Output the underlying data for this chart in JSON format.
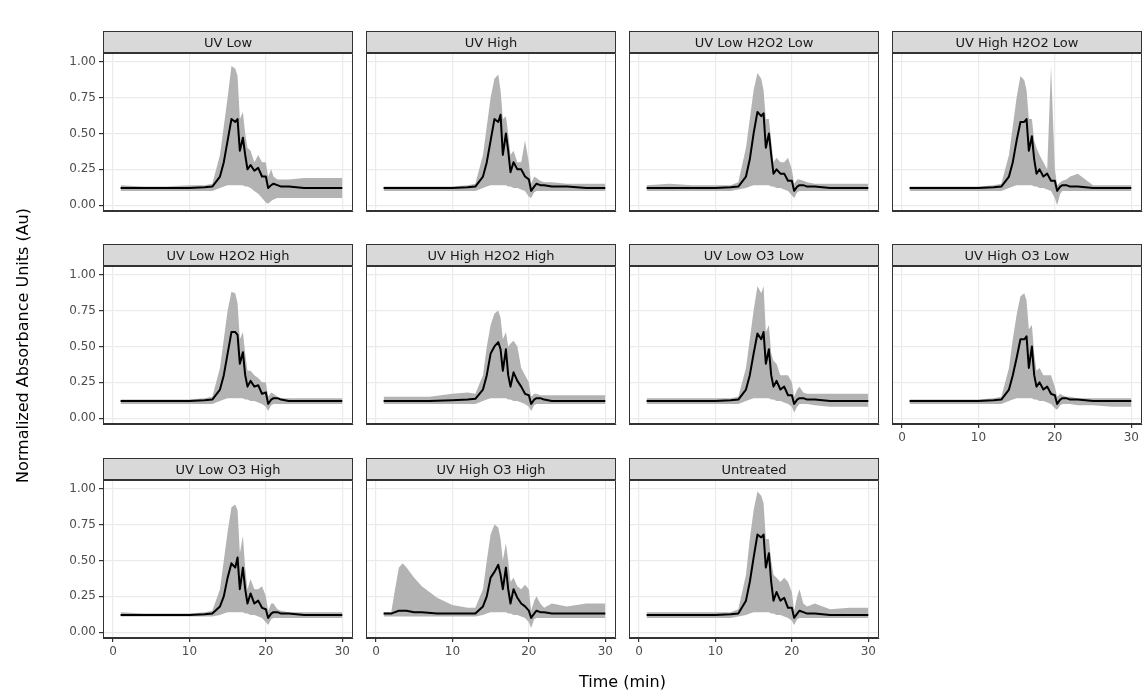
{
  "chart_data": [
    {
      "type": "line",
      "title": "UV Low",
      "marker": "none",
      "grid": true,
      "tick_labels": "y",
      "xlim": [
        -1.3,
        31.4
      ],
      "xticks": [
        0,
        10,
        20,
        30
      ],
      "ylim": [
        -0.04,
        1.06
      ],
      "yticks": [
        {
          "value": 0,
          "label": "0.00"
        },
        {
          "value": 0.25,
          "label": "0.25"
        },
        {
          "value": 0.5,
          "label": "0.50"
        },
        {
          "value": 0.75,
          "label": "0.75"
        },
        {
          "value": 1,
          "label": "1.00"
        }
      ],
      "x": [
        1,
        4,
        7,
        10,
        12,
        13,
        14,
        14.5,
        15,
        15.5,
        16,
        16.3,
        16.6,
        17,
        17.3,
        17.6,
        18,
        18.5,
        19,
        19.5,
        20,
        20.3,
        20.7,
        21,
        21.5,
        22,
        23,
        25,
        27.5,
        30
      ],
      "series": [
        {
          "color": "#000000",
          "values": [
            0.12,
            0.12,
            0.12,
            0.12,
            0.125,
            0.13,
            0.2,
            0.3,
            0.45,
            0.6,
            0.58,
            0.6,
            0.38,
            0.47,
            0.35,
            0.25,
            0.28,
            0.24,
            0.26,
            0.2,
            0.2,
            0.12,
            0.14,
            0.15,
            0.14,
            0.13,
            0.13,
            0.12,
            0.12,
            0.12
          ],
          "upper": [
            0.14,
            0.13,
            0.13,
            0.14,
            0.14,
            0.15,
            0.35,
            0.55,
            0.75,
            0.97,
            0.95,
            0.9,
            0.6,
            0.65,
            0.5,
            0.4,
            0.38,
            0.3,
            0.35,
            0.3,
            0.3,
            0.2,
            0.25,
            0.2,
            0.18,
            0.18,
            0.18,
            0.19,
            0.19,
            0.19
          ],
          "lower": [
            0.1,
            0.1,
            0.1,
            0.1,
            0.1,
            0.1,
            0.12,
            0.13,
            0.14,
            0.14,
            0.14,
            0.14,
            0.14,
            0.14,
            0.13,
            0.13,
            0.12,
            0.1,
            0.08,
            0.05,
            0.02,
            0.01,
            0.03,
            0.04,
            0.05,
            0.05,
            0.05,
            0.05,
            0.05,
            0.05
          ]
        }
      ]
    },
    {
      "type": "line",
      "title": "UV High",
      "marker": "none",
      "grid": true,
      "tick_labels": false,
      "xlim": [
        -1.3,
        31.4
      ],
      "xticks": [
        0,
        10,
        20,
        30
      ],
      "ylim": [
        -0.04,
        1.06
      ],
      "yticks": [
        0,
        0.25,
        0.5,
        0.75,
        1
      ],
      "x": [
        1,
        4,
        7,
        10,
        12,
        13,
        14,
        14.5,
        15,
        15.5,
        16,
        16.3,
        16.6,
        17,
        17.3,
        17.6,
        18,
        18.5,
        19,
        19.5,
        20,
        20.3,
        20.7,
        21,
        21.5,
        22,
        23,
        25,
        27.5,
        30
      ],
      "series": [
        {
          "color": "#000000",
          "values": [
            0.12,
            0.12,
            0.12,
            0.12,
            0.125,
            0.13,
            0.2,
            0.3,
            0.45,
            0.6,
            0.58,
            0.63,
            0.35,
            0.5,
            0.38,
            0.23,
            0.3,
            0.25,
            0.25,
            0.2,
            0.18,
            0.1,
            0.13,
            0.15,
            0.14,
            0.14,
            0.13,
            0.13,
            0.12,
            0.12
          ],
          "upper": [
            0.13,
            0.13,
            0.13,
            0.13,
            0.14,
            0.15,
            0.35,
            0.55,
            0.75,
            0.88,
            0.91,
            0.8,
            0.6,
            0.62,
            0.5,
            0.35,
            0.38,
            0.3,
            0.3,
            0.45,
            0.3,
            0.15,
            0.2,
            0.19,
            0.17,
            0.16,
            0.16,
            0.15,
            0.15,
            0.15
          ],
          "lower": [
            0.1,
            0.1,
            0.1,
            0.1,
            0.1,
            0.1,
            0.12,
            0.13,
            0.14,
            0.14,
            0.14,
            0.14,
            0.14,
            0.14,
            0.13,
            0.13,
            0.12,
            0.12,
            0.11,
            0.1,
            0.06,
            0.05,
            0.09,
            0.1,
            0.1,
            0.1,
            0.1,
            0.1,
            0.1,
            0.1
          ]
        }
      ]
    },
    {
      "type": "line",
      "title": "UV Low H2O2 Low",
      "marker": "none",
      "grid": true,
      "tick_labels": false,
      "xlim": [
        -1.3,
        31.4
      ],
      "xticks": [
        0,
        10,
        20,
        30
      ],
      "ylim": [
        -0.04,
        1.06
      ],
      "yticks": [
        0,
        0.25,
        0.5,
        0.75,
        1
      ],
      "x": [
        1,
        4,
        7,
        10,
        12,
        13,
        14,
        14.5,
        15,
        15.5,
        16,
        16.3,
        16.6,
        17,
        17.3,
        17.6,
        18,
        18.5,
        19,
        19.5,
        20,
        20.3,
        20.7,
        21,
        21.5,
        22,
        23,
        25,
        27.5,
        30
      ],
      "series": [
        {
          "color": "#000000",
          "values": [
            0.12,
            0.12,
            0.12,
            0.12,
            0.125,
            0.13,
            0.2,
            0.32,
            0.5,
            0.65,
            0.62,
            0.64,
            0.4,
            0.5,
            0.35,
            0.22,
            0.25,
            0.22,
            0.22,
            0.17,
            0.17,
            0.1,
            0.13,
            0.14,
            0.14,
            0.13,
            0.13,
            0.12,
            0.12,
            0.12
          ],
          "upper": [
            0.14,
            0.15,
            0.14,
            0.14,
            0.14,
            0.16,
            0.4,
            0.6,
            0.8,
            0.92,
            0.88,
            0.8,
            0.6,
            0.6,
            0.45,
            0.3,
            0.33,
            0.3,
            0.3,
            0.33,
            0.25,
            0.15,
            0.18,
            0.18,
            0.17,
            0.16,
            0.15,
            0.15,
            0.15,
            0.15
          ],
          "lower": [
            0.1,
            0.1,
            0.1,
            0.1,
            0.1,
            0.11,
            0.12,
            0.13,
            0.14,
            0.14,
            0.14,
            0.14,
            0.14,
            0.14,
            0.13,
            0.13,
            0.12,
            0.12,
            0.11,
            0.1,
            0.07,
            0.05,
            0.09,
            0.1,
            0.1,
            0.1,
            0.1,
            0.1,
            0.1,
            0.1
          ]
        }
      ]
    },
    {
      "type": "line",
      "title": "UV High H2O2 Low",
      "marker": "none",
      "grid": true,
      "tick_labels": false,
      "xlim": [
        -1.3,
        31.4
      ],
      "xticks": [
        0,
        10,
        20,
        30
      ],
      "ylim": [
        -0.04,
        1.06
      ],
      "yticks": [
        0,
        0.25,
        0.5,
        0.75,
        1
      ],
      "x": [
        1,
        4,
        7,
        10,
        12,
        13,
        14,
        14.5,
        15,
        15.5,
        16,
        16.3,
        16.6,
        17,
        17.3,
        17.6,
        18,
        18.5,
        19,
        19.5,
        20,
        20.3,
        20.7,
        21,
        21.5,
        22,
        23,
        25,
        27.5,
        30
      ],
      "series": [
        {
          "color": "#000000",
          "values": [
            0.12,
            0.12,
            0.12,
            0.12,
            0.125,
            0.13,
            0.2,
            0.3,
            0.45,
            0.58,
            0.58,
            0.6,
            0.38,
            0.48,
            0.32,
            0.22,
            0.25,
            0.2,
            0.22,
            0.17,
            0.17,
            0.1,
            0.13,
            0.14,
            0.14,
            0.13,
            0.13,
            0.12,
            0.12,
            0.12
          ],
          "upper": [
            0.13,
            0.13,
            0.13,
            0.13,
            0.14,
            0.15,
            0.35,
            0.55,
            0.75,
            0.9,
            0.87,
            0.8,
            0.6,
            0.6,
            0.45,
            0.4,
            0.35,
            0.3,
            0.25,
            0.97,
            0.25,
            0.14,
            0.16,
            0.17,
            0.18,
            0.2,
            0.22,
            0.14,
            0.14,
            0.14
          ],
          "lower": [
            0.1,
            0.1,
            0.1,
            0.1,
            0.1,
            0.1,
            0.12,
            0.13,
            0.14,
            0.14,
            0.14,
            0.14,
            0.14,
            0.14,
            0.13,
            0.13,
            0.12,
            0.12,
            0.11,
            0.1,
            0.05,
            0,
            0.08,
            0.1,
            0.1,
            0.1,
            0.1,
            0.1,
            0.1,
            0.1
          ]
        }
      ]
    },
    {
      "type": "line",
      "title": "UV Low H2O2 High",
      "ylabel": "Normalized Absorbance Units (Au)",
      "marker": "none",
      "grid": true,
      "tick_labels": "y",
      "xlim": [
        -1.3,
        31.4
      ],
      "xticks": [
        0,
        10,
        20,
        30
      ],
      "ylim": [
        -0.04,
        1.06
      ],
      "yticks": [
        {
          "value": 0,
          "label": "0.00"
        },
        {
          "value": 0.25,
          "label": "0.25"
        },
        {
          "value": 0.5,
          "label": "0.50"
        },
        {
          "value": 0.75,
          "label": "0.75"
        },
        {
          "value": 1,
          "label": "1.00"
        }
      ],
      "x": [
        1,
        4,
        7,
        10,
        12,
        13,
        14,
        14.5,
        15,
        15.5,
        16,
        16.3,
        16.6,
        17,
        17.3,
        17.6,
        18,
        18.5,
        19,
        19.5,
        20,
        20.3,
        20.7,
        21,
        21.5,
        22,
        23,
        25,
        27.5,
        30
      ],
      "series": [
        {
          "color": "#000000",
          "values": [
            0.12,
            0.12,
            0.12,
            0.12,
            0.125,
            0.13,
            0.2,
            0.3,
            0.45,
            0.6,
            0.6,
            0.58,
            0.38,
            0.46,
            0.3,
            0.22,
            0.26,
            0.22,
            0.23,
            0.17,
            0.18,
            0.1,
            0.13,
            0.14,
            0.14,
            0.13,
            0.12,
            0.12,
            0.12,
            0.12
          ],
          "upper": [
            0.13,
            0.13,
            0.13,
            0.13,
            0.14,
            0.15,
            0.35,
            0.55,
            0.75,
            0.88,
            0.87,
            0.8,
            0.55,
            0.6,
            0.45,
            0.33,
            0.33,
            0.3,
            0.28,
            0.25,
            0.25,
            0.15,
            0.18,
            0.17,
            0.15,
            0.14,
            0.14,
            0.14,
            0.14,
            0.14
          ],
          "lower": [
            0.1,
            0.1,
            0.1,
            0.1,
            0.1,
            0.1,
            0.12,
            0.13,
            0.14,
            0.14,
            0.14,
            0.14,
            0.14,
            0.14,
            0.13,
            0.13,
            0.12,
            0.12,
            0.11,
            0.1,
            0.08,
            0.05,
            0.09,
            0.1,
            0.1,
            0.1,
            0.1,
            0.1,
            0.1,
            0.1
          ]
        }
      ]
    },
    {
      "type": "line",
      "title": "UV High H2O2 High",
      "marker": "none",
      "grid": true,
      "tick_labels": false,
      "xlim": [
        -1.3,
        31.4
      ],
      "xticks": [
        0,
        10,
        20,
        30
      ],
      "ylim": [
        -0.04,
        1.06
      ],
      "yticks": [
        0,
        0.25,
        0.5,
        0.75,
        1
      ],
      "x": [
        1,
        4,
        7,
        10,
        12,
        13,
        14,
        14.5,
        15,
        15.5,
        16,
        16.3,
        16.6,
        17,
        17.3,
        17.6,
        18,
        18.5,
        19,
        19.5,
        20,
        20.3,
        20.7,
        21,
        21.5,
        22,
        23,
        25,
        27.5,
        30
      ],
      "series": [
        {
          "color": "#000000",
          "values": [
            0.12,
            0.12,
            0.12,
            0.125,
            0.13,
            0.135,
            0.2,
            0.3,
            0.45,
            0.5,
            0.53,
            0.48,
            0.33,
            0.48,
            0.3,
            0.22,
            0.32,
            0.26,
            0.22,
            0.17,
            0.16,
            0.1,
            0.13,
            0.14,
            0.14,
            0.13,
            0.12,
            0.12,
            0.12,
            0.12
          ],
          "upper": [
            0.15,
            0.15,
            0.15,
            0.17,
            0.18,
            0.17,
            0.3,
            0.5,
            0.65,
            0.73,
            0.75,
            0.7,
            0.55,
            0.6,
            0.5,
            0.52,
            0.54,
            0.5,
            0.35,
            0.3,
            0.25,
            0.15,
            0.17,
            0.17,
            0.16,
            0.16,
            0.16,
            0.16,
            0.16,
            0.16
          ],
          "lower": [
            0.1,
            0.1,
            0.1,
            0.1,
            0.1,
            0.1,
            0.12,
            0.13,
            0.14,
            0.14,
            0.14,
            0.14,
            0.14,
            0.14,
            0.13,
            0.13,
            0.12,
            0.12,
            0.11,
            0.1,
            0.08,
            0.05,
            0.09,
            0.1,
            0.1,
            0.1,
            0.1,
            0.1,
            0.1,
            0.1
          ]
        }
      ]
    },
    {
      "type": "line",
      "title": "UV Low O3 Low",
      "marker": "none",
      "grid": true,
      "tick_labels": false,
      "xlim": [
        -1.3,
        31.4
      ],
      "xticks": [
        0,
        10,
        20,
        30
      ],
      "ylim": [
        -0.04,
        1.06
      ],
      "yticks": [
        0,
        0.25,
        0.5,
        0.75,
        1
      ],
      "x": [
        1,
        4,
        7,
        10,
        12,
        13,
        14,
        14.5,
        15,
        15.5,
        16,
        16.3,
        16.6,
        17,
        17.3,
        17.6,
        18,
        18.5,
        19,
        19.5,
        20,
        20.3,
        20.7,
        21,
        21.5,
        22,
        23,
        25,
        27.5,
        30
      ],
      "series": [
        {
          "color": "#000000",
          "values": [
            0.12,
            0.12,
            0.12,
            0.12,
            0.125,
            0.13,
            0.2,
            0.3,
            0.45,
            0.59,
            0.55,
            0.6,
            0.38,
            0.48,
            0.3,
            0.22,
            0.26,
            0.2,
            0.22,
            0.16,
            0.16,
            0.1,
            0.13,
            0.14,
            0.14,
            0.13,
            0.13,
            0.12,
            0.12,
            0.12
          ],
          "upper": [
            0.14,
            0.14,
            0.14,
            0.14,
            0.14,
            0.15,
            0.35,
            0.55,
            0.75,
            0.92,
            0.87,
            0.92,
            0.6,
            0.65,
            0.45,
            0.4,
            0.38,
            0.3,
            0.3,
            0.3,
            0.25,
            0.15,
            0.2,
            0.22,
            0.18,
            0.17,
            0.17,
            0.17,
            0.17,
            0.17
          ],
          "lower": [
            0.1,
            0.1,
            0.1,
            0.1,
            0.1,
            0.1,
            0.12,
            0.13,
            0.14,
            0.14,
            0.14,
            0.14,
            0.14,
            0.14,
            0.13,
            0.13,
            0.12,
            0.12,
            0.11,
            0.1,
            0.08,
            0.04,
            0.08,
            0.1,
            0.1,
            0.1,
            0.09,
            0.08,
            0.08,
            0.08
          ]
        }
      ]
    },
    {
      "type": "line",
      "title": "UV High O3 Low",
      "marker": "none",
      "grid": true,
      "tick_labels": "x",
      "xlim": [
        -1.3,
        31.4
      ],
      "xticks": [
        0,
        10,
        20,
        30
      ],
      "ylim": [
        -0.04,
        1.06
      ],
      "yticks": [
        0,
        0.25,
        0.5,
        0.75,
        1
      ],
      "x": [
        1,
        4,
        7,
        10,
        12,
        13,
        14,
        14.5,
        15,
        15.5,
        16,
        16.3,
        16.6,
        17,
        17.3,
        17.6,
        18,
        18.5,
        19,
        19.5,
        20,
        20.3,
        20.7,
        21,
        21.5,
        22,
        23,
        25,
        27.5,
        30
      ],
      "series": [
        {
          "color": "#000000",
          "values": [
            0.12,
            0.12,
            0.12,
            0.12,
            0.125,
            0.13,
            0.2,
            0.3,
            0.42,
            0.55,
            0.55,
            0.57,
            0.35,
            0.5,
            0.3,
            0.22,
            0.25,
            0.2,
            0.22,
            0.17,
            0.16,
            0.1,
            0.13,
            0.14,
            0.14,
            0.13,
            0.13,
            0.12,
            0.12,
            0.12
          ],
          "upper": [
            0.13,
            0.13,
            0.13,
            0.13,
            0.14,
            0.15,
            0.35,
            0.55,
            0.72,
            0.85,
            0.87,
            0.82,
            0.62,
            0.65,
            0.45,
            0.33,
            0.35,
            0.3,
            0.3,
            0.3,
            0.22,
            0.15,
            0.17,
            0.16,
            0.15,
            0.15,
            0.14,
            0.14,
            0.14,
            0.14
          ],
          "lower": [
            0.1,
            0.1,
            0.1,
            0.1,
            0.1,
            0.1,
            0.12,
            0.13,
            0.14,
            0.14,
            0.14,
            0.14,
            0.14,
            0.14,
            0.13,
            0.13,
            0.12,
            0.12,
            0.11,
            0.1,
            0.07,
            0.06,
            0.09,
            0.1,
            0.1,
            0.1,
            0.09,
            0.09,
            0.08,
            0.08
          ]
        }
      ]
    },
    {
      "type": "line",
      "title": "UV Low O3 High",
      "marker": "none",
      "grid": true,
      "xlim": [
        -1.3,
        31.4
      ],
      "xticks": [
        0,
        10,
        20,
        30
      ],
      "ylim": [
        -0.04,
        1.06
      ],
      "yticks": [
        {
          "value": 0,
          "label": "0.00"
        },
        {
          "value": 0.25,
          "label": "0.25"
        },
        {
          "value": 0.5,
          "label": "0.50"
        },
        {
          "value": 0.75,
          "label": "0.75"
        },
        {
          "value": 1,
          "label": "1.00"
        }
      ],
      "x": [
        1,
        4,
        7,
        10,
        12,
        13,
        14,
        14.5,
        15,
        15.5,
        16,
        16.3,
        16.6,
        17,
        17.3,
        17.6,
        18,
        18.5,
        19,
        19.5,
        20,
        20.3,
        20.7,
        21,
        21.5,
        22,
        23,
        25,
        27.5,
        30
      ],
      "series": [
        {
          "color": "#000000",
          "values": [
            0.12,
            0.12,
            0.12,
            0.12,
            0.125,
            0.13,
            0.18,
            0.25,
            0.38,
            0.48,
            0.45,
            0.52,
            0.3,
            0.45,
            0.3,
            0.2,
            0.27,
            0.2,
            0.22,
            0.17,
            0.16,
            0.1,
            0.13,
            0.14,
            0.14,
            0.13,
            0.13,
            0.12,
            0.12,
            0.12
          ],
          "upper": [
            0.14,
            0.13,
            0.13,
            0.13,
            0.14,
            0.15,
            0.3,
            0.5,
            0.7,
            0.87,
            0.89,
            0.85,
            0.55,
            0.67,
            0.45,
            0.3,
            0.37,
            0.3,
            0.3,
            0.32,
            0.25,
            0.15,
            0.2,
            0.2,
            0.16,
            0.15,
            0.14,
            0.14,
            0.14,
            0.14
          ],
          "lower": [
            0.11,
            0.11,
            0.11,
            0.11,
            0.11,
            0.11,
            0.12,
            0.13,
            0.14,
            0.14,
            0.14,
            0.14,
            0.14,
            0.14,
            0.13,
            0.13,
            0.12,
            0.12,
            0.11,
            0.1,
            0.07,
            0.05,
            0.09,
            0.1,
            0.1,
            0.1,
            0.1,
            0.1,
            0.1,
            0.1
          ]
        }
      ]
    },
    {
      "type": "line",
      "title": "UV High O3 High",
      "xlabel": "Time (min)",
      "marker": "none",
      "grid": true,
      "tick_labels": "x",
      "xlim": [
        -1.3,
        31.4
      ],
      "xticks": [
        0,
        10,
        20,
        30
      ],
      "ylim": [
        -0.04,
        1.06
      ],
      "yticks": [
        0,
        0.25,
        0.5,
        0.75,
        1
      ],
      "x": [
        1,
        2,
        2.5,
        3,
        3.5,
        4,
        5,
        6,
        8,
        10,
        12,
        13,
        14,
        14.5,
        15,
        15.5,
        16,
        16.3,
        16.6,
        17,
        17.3,
        17.6,
        18,
        18.5,
        19,
        19.5,
        20,
        20.3,
        20.7,
        21,
        21.5,
        22,
        23,
        25,
        27.5,
        30
      ],
      "series": [
        {
          "color": "#000000",
          "values": [
            0.13,
            0.13,
            0.14,
            0.15,
            0.15,
            0.15,
            0.14,
            0.14,
            0.13,
            0.13,
            0.13,
            0.13,
            0.18,
            0.25,
            0.38,
            0.42,
            0.47,
            0.4,
            0.3,
            0.45,
            0.3,
            0.2,
            0.3,
            0.24,
            0.2,
            0.18,
            0.15,
            0.1,
            0.13,
            0.15,
            0.14,
            0.14,
            0.13,
            0.13,
            0.13,
            0.13
          ],
          "upper": [
            0.14,
            0.14,
            0.3,
            0.45,
            0.48,
            0.45,
            0.38,
            0.32,
            0.24,
            0.19,
            0.17,
            0.17,
            0.3,
            0.5,
            0.68,
            0.75,
            0.73,
            0.65,
            0.5,
            0.62,
            0.5,
            0.35,
            0.38,
            0.32,
            0.3,
            0.33,
            0.3,
            0.15,
            0.22,
            0.25,
            0.2,
            0.17,
            0.2,
            0.18,
            0.2,
            0.2
          ],
          "lower": [
            0.11,
            0.11,
            0.11,
            0.11,
            0.11,
            0.11,
            0.11,
            0.11,
            0.11,
            0.11,
            0.11,
            0.11,
            0.12,
            0.13,
            0.14,
            0.14,
            0.14,
            0.14,
            0.14,
            0.14,
            0.13,
            0.13,
            0.12,
            0.12,
            0.11,
            0.1,
            0.07,
            0.03,
            0.09,
            0.1,
            0.1,
            0.1,
            0.1,
            0.1,
            0.1,
            0.1
          ]
        }
      ]
    },
    {
      "type": "line",
      "title": "Untreated",
      "marker": "none",
      "grid": true,
      "tick_labels": "x",
      "xlim": [
        -1.3,
        31.4
      ],
      "xticks": [
        0,
        10,
        20,
        30
      ],
      "ylim": [
        -0.04,
        1.06
      ],
      "yticks": [
        0,
        0.25,
        0.5,
        0.75,
        1
      ],
      "x": [
        1,
        4,
        7,
        10,
        12,
        13,
        14,
        14.5,
        15,
        15.5,
        16,
        16.3,
        16.6,
        17,
        17.3,
        17.6,
        18,
        18.5,
        19,
        19.5,
        20,
        20.3,
        20.7,
        21,
        21.5,
        22,
        23,
        25,
        27.5,
        30
      ],
      "series": [
        {
          "color": "#000000",
          "values": [
            0.12,
            0.12,
            0.12,
            0.12,
            0.125,
            0.13,
            0.22,
            0.35,
            0.52,
            0.68,
            0.66,
            0.68,
            0.45,
            0.55,
            0.35,
            0.22,
            0.28,
            0.22,
            0.24,
            0.17,
            0.17,
            0.1,
            0.13,
            0.15,
            0.14,
            0.13,
            0.13,
            0.12,
            0.12,
            0.12
          ],
          "upper": [
            0.14,
            0.14,
            0.14,
            0.14,
            0.14,
            0.16,
            0.4,
            0.65,
            0.85,
            0.98,
            0.95,
            0.9,
            0.65,
            0.65,
            0.5,
            0.4,
            0.38,
            0.35,
            0.38,
            0.35,
            0.28,
            0.15,
            0.25,
            0.3,
            0.2,
            0.18,
            0.2,
            0.16,
            0.17,
            0.17
          ],
          "lower": [
            0.1,
            0.1,
            0.1,
            0.1,
            0.1,
            0.11,
            0.12,
            0.13,
            0.14,
            0.14,
            0.14,
            0.14,
            0.14,
            0.14,
            0.13,
            0.13,
            0.12,
            0.12,
            0.11,
            0.1,
            0.08,
            0.05,
            0.09,
            0.1,
            0.1,
            0.1,
            0.1,
            0.1,
            0.1,
            0.1
          ]
        }
      ]
    }
  ]
}
